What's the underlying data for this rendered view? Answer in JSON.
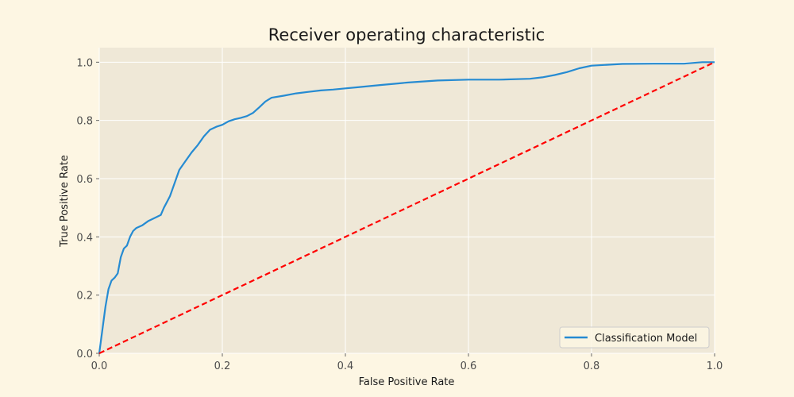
{
  "chart_data": {
    "type": "line",
    "title": "Receiver operating characteristic",
    "xlabel": "False Positive Rate",
    "ylabel": "True Positive Rate",
    "xlim": [
      0.0,
      1.0
    ],
    "ylim": [
      0.0,
      1.05
    ],
    "xticks": [
      "0.0",
      "0.2",
      "0.4",
      "0.6",
      "0.8",
      "1.0"
    ],
    "yticks": [
      "0.0",
      "0.2",
      "0.4",
      "0.6",
      "0.8",
      "1.0"
    ],
    "grid": true,
    "legend_position": "lower-right",
    "colors": {
      "background": "#fdf6e3",
      "plot_background": "#efe8d7",
      "grid": "#ffffff",
      "model_line": "#268bd2",
      "baseline_line": "#ff0000"
    },
    "series": [
      {
        "name": "Classification Model",
        "style": "solid",
        "x": [
          0.0,
          0.005,
          0.01,
          0.015,
          0.02,
          0.025,
          0.03,
          0.035,
          0.04,
          0.045,
          0.05,
          0.055,
          0.06,
          0.07,
          0.08,
          0.09,
          0.1,
          0.105,
          0.11,
          0.115,
          0.12,
          0.125,
          0.13,
          0.14,
          0.15,
          0.16,
          0.17,
          0.18,
          0.19,
          0.2,
          0.21,
          0.22,
          0.23,
          0.24,
          0.25,
          0.26,
          0.27,
          0.28,
          0.3,
          0.32,
          0.34,
          0.36,
          0.38,
          0.4,
          0.42,
          0.44,
          0.46,
          0.48,
          0.5,
          0.55,
          0.6,
          0.65,
          0.7,
          0.72,
          0.74,
          0.76,
          0.78,
          0.8,
          0.85,
          0.9,
          0.95,
          0.98,
          1.0
        ],
        "y": [
          0.0,
          0.08,
          0.16,
          0.22,
          0.25,
          0.26,
          0.275,
          0.33,
          0.36,
          0.37,
          0.4,
          0.42,
          0.43,
          0.44,
          0.455,
          0.465,
          0.475,
          0.5,
          0.52,
          0.54,
          0.57,
          0.6,
          0.63,
          0.66,
          0.69,
          0.715,
          0.745,
          0.768,
          0.778,
          0.785,
          0.797,
          0.804,
          0.809,
          0.815,
          0.826,
          0.845,
          0.865,
          0.878,
          0.885,
          0.893,
          0.898,
          0.903,
          0.906,
          0.91,
          0.914,
          0.918,
          0.922,
          0.926,
          0.93,
          0.937,
          0.94,
          0.94,
          0.943,
          0.948,
          0.956,
          0.966,
          0.979,
          0.988,
          0.994,
          0.995,
          0.995,
          1.0,
          1.0
        ]
      },
      {
        "name": "",
        "style": "dashed",
        "x": [
          0.0,
          1.0
        ],
        "y": [
          0.0,
          1.0
        ]
      }
    ]
  }
}
